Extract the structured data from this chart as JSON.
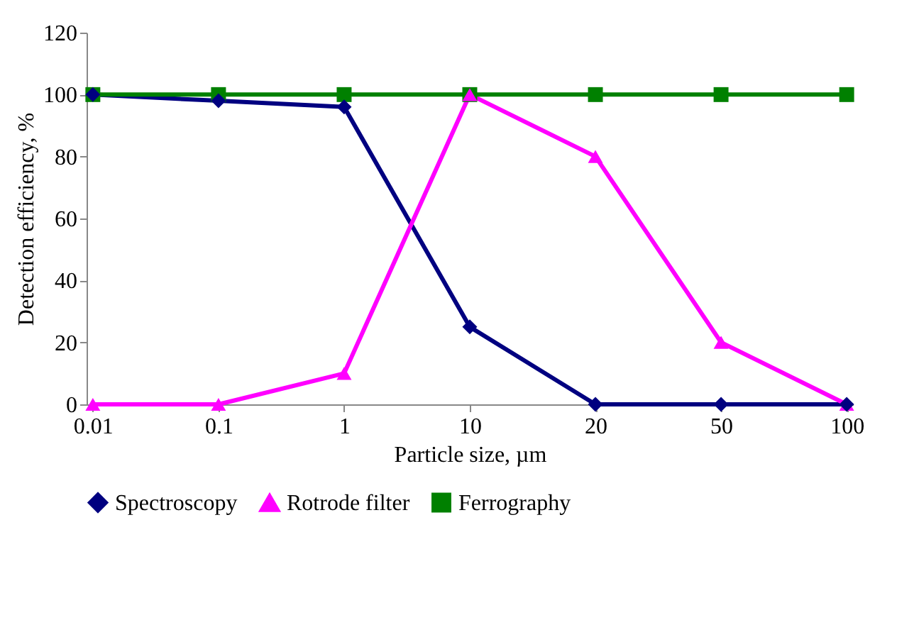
{
  "chart_data": {
    "type": "line",
    "xlabel": "Particle size, µm",
    "ylabel": "Detection efficiency, %",
    "categories": [
      "0.01",
      "0.1",
      "1",
      "10",
      "20",
      "50",
      "100"
    ],
    "series": [
      {
        "name": "Spectroscopy",
        "color": "#000080",
        "marker": "diamond",
        "values": [
          100,
          98,
          96,
          25,
          0,
          0,
          0
        ]
      },
      {
        "name": "Rotrode filter",
        "color": "#ff00ff",
        "marker": "triangle",
        "values": [
          0,
          0,
          10,
          100,
          80,
          20,
          0
        ]
      },
      {
        "name": "Ferrography",
        "color": "#008000",
        "marker": "square",
        "values": [
          100,
          100,
          100,
          100,
          100,
          100,
          100
        ]
      }
    ],
    "ylim": [
      0,
      120
    ],
    "yticks": [
      0,
      20,
      40,
      60,
      80,
      100,
      120
    ],
    "grid": false,
    "legend": "bottom",
    "line_style": "solid"
  }
}
